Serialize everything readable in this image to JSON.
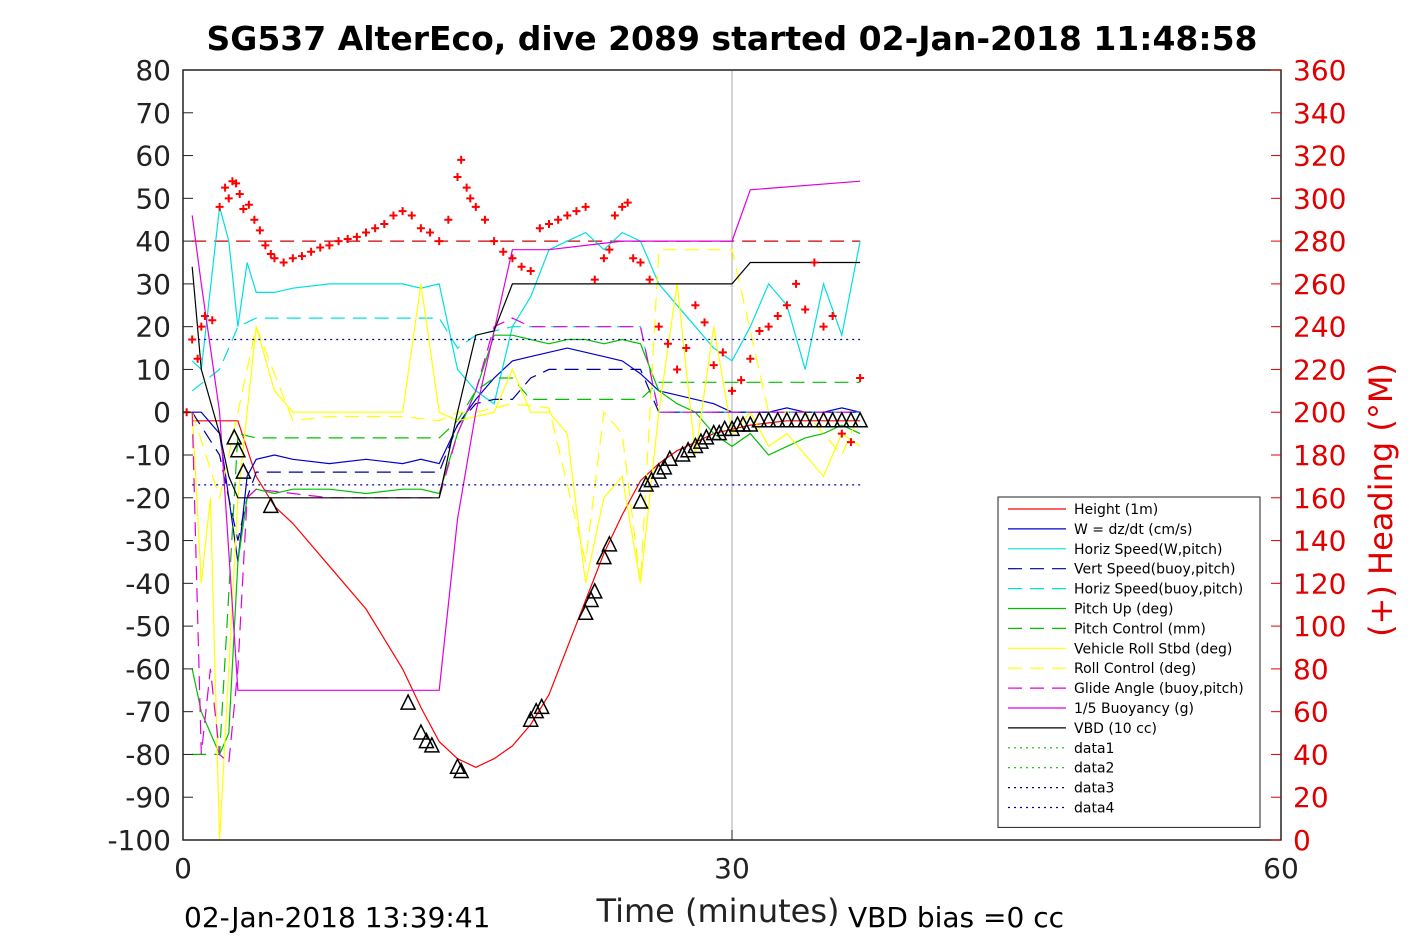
{
  "chart_data": {
    "type": "line",
    "title": "SG537 AlterEco, dive 2089 started 02-Jan-2018 11:48:58",
    "xlabel": "Time (minutes)",
    "ylabel": "",
    "ylabel_right": "(+) Heading (°M)",
    "xlim": [
      0,
      60
    ],
    "ylim": [
      -100,
      80
    ],
    "ylim_right": [
      0,
      360
    ],
    "x_ticks": [
      "0",
      "30",
      "60"
    ],
    "x_tick_values": [
      0,
      30,
      60
    ],
    "y_ticks": [
      "80",
      "70",
      "60",
      "50",
      "40",
      "30",
      "20",
      "10",
      "0",
      "-10",
      "-20",
      "-30",
      "-40",
      "-50",
      "-60",
      "-70",
      "-80",
      "-90",
      "-100"
    ],
    "y_tick_values": [
      80,
      70,
      60,
      50,
      40,
      30,
      20,
      10,
      0,
      -10,
      -20,
      -30,
      -40,
      -50,
      -60,
      -70,
      -80,
      -90,
      -100
    ],
    "y_right_ticks": [
      "360",
      "340",
      "320",
      "300",
      "280",
      "260",
      "240",
      "220",
      "200",
      "180",
      "160",
      "140",
      "120",
      "100",
      "80",
      "60",
      "40",
      "20",
      "0"
    ],
    "y_right_tick_values": [
      360,
      340,
      320,
      300,
      280,
      260,
      240,
      220,
      200,
      180,
      160,
      140,
      120,
      100,
      80,
      60,
      40,
      20,
      0
    ],
    "grid": false,
    "vertical_line_x": 30,
    "legend_position": "lower-right",
    "footer_left": "02-Jan-2018 13:39:41",
    "footer_right": "VBD bias =0 cc",
    "series": [
      {
        "name": "Height (1m)",
        "color": "#ff0000",
        "style": "solid",
        "x": [
          0.5,
          3,
          4,
          5,
          6,
          8,
          10,
          12,
          13,
          14,
          15,
          16,
          17,
          18,
          19,
          20,
          21,
          22,
          23,
          24,
          25,
          26,
          27,
          28,
          29,
          30,
          31,
          32,
          33,
          34,
          35,
          36,
          37
        ],
        "y": [
          -2,
          -2,
          -15,
          -22,
          -26,
          -36,
          -46,
          -60,
          -69,
          -77,
          -81,
          -83,
          -81,
          -78,
          -73,
          -66,
          -55,
          -44,
          -33,
          -24,
          -16,
          -12,
          -9,
          -7,
          -5,
          -4,
          -3,
          -2.5,
          -2,
          -2,
          -2,
          -2,
          -2
        ]
      },
      {
        "name": "W = dz/dt (cm/s)",
        "color": "#0000cc",
        "style": "solid",
        "x": [
          0.5,
          1,
          2,
          2.5,
          3,
          3.5,
          4,
          5,
          6,
          8,
          10,
          12,
          13,
          14,
          15,
          16,
          17,
          18,
          19,
          20,
          21,
          22,
          23,
          24,
          25,
          26,
          27,
          28,
          29,
          30,
          31,
          32,
          33,
          34,
          35,
          36,
          37
        ],
        "y": [
          0,
          0,
          -5,
          -20,
          -35,
          -15,
          -11,
          -10,
          -11,
          -12,
          -11,
          -12,
          -11,
          -12,
          -3,
          3,
          8,
          12,
          13,
          14,
          15,
          14,
          13,
          12,
          9,
          5,
          4,
          3,
          2,
          0,
          0,
          0,
          1,
          0,
          0,
          1,
          0
        ]
      },
      {
        "name": "Horiz Speed(W,pitch)",
        "color": "#00e0e0",
        "style": "solid",
        "x": [
          0.5,
          1,
          2,
          2.5,
          3,
          3.5,
          4,
          5,
          6,
          8,
          10,
          12,
          13,
          14,
          15,
          16,
          17,
          18,
          19,
          20,
          21,
          22,
          23,
          24,
          25,
          26,
          27,
          28,
          29,
          30,
          31,
          32,
          33,
          34,
          35,
          36,
          37
        ],
        "y": [
          12,
          10,
          48,
          40,
          20,
          35,
          28,
          28,
          29,
          30,
          30,
          30,
          29,
          30,
          10,
          5,
          2,
          20,
          27,
          38,
          40,
          42,
          38,
          42,
          40,
          30,
          25,
          20,
          15,
          12,
          20,
          30,
          25,
          10,
          30,
          18,
          40
        ]
      },
      {
        "name": "Vert Speed(buoy,pitch)",
        "color": "#000099",
        "style": "dashed",
        "x": [
          0.5,
          2,
          3,
          3.5,
          4,
          6,
          8,
          10,
          12,
          14,
          15,
          16,
          17,
          18,
          19,
          20,
          22,
          24,
          25,
          26,
          28,
          30,
          32,
          34,
          36,
          37
        ],
        "y": [
          0,
          -10,
          -30,
          -20,
          -14,
          -14,
          -14,
          -14,
          -14,
          -14,
          -3,
          2,
          3,
          3,
          8,
          10,
          10,
          10,
          10,
          0,
          0,
          0,
          0,
          0,
          0,
          0
        ]
      },
      {
        "name": "Horiz Speed(buoy,pitch)",
        "color": "#00e0e0",
        "style": "dashed",
        "x": [
          0.5,
          2,
          3,
          4,
          6,
          8,
          10,
          12,
          14,
          15,
          16,
          17,
          18,
          19,
          20,
          22,
          24,
          25,
          26,
          28,
          30,
          32,
          34,
          36,
          37
        ],
        "y": [
          5,
          10,
          20,
          22,
          22,
          22,
          22,
          22,
          22,
          15,
          18,
          19,
          20,
          20,
          20,
          20,
          20,
          20,
          0,
          0,
          0,
          0,
          0,
          0,
          0
        ]
      },
      {
        "name": "Pitch Up (deg)",
        "color": "#00c000",
        "style": "solid",
        "x": [
          0.5,
          1,
          2,
          2.5,
          3,
          3.5,
          4,
          5,
          6,
          8,
          10,
          12,
          13,
          14,
          15,
          16,
          17,
          18,
          19,
          20,
          21,
          22,
          23,
          24,
          25,
          26,
          27,
          28,
          29,
          30,
          31,
          32,
          33,
          34,
          35,
          36,
          37
        ],
        "y": [
          -60,
          -70,
          -80,
          -75,
          -35,
          -20,
          -18,
          -19,
          -18,
          -18,
          -19,
          -18,
          -18,
          -19,
          -5,
          5,
          18,
          18,
          17,
          16,
          17,
          17,
          16,
          17,
          16,
          5,
          2,
          0,
          -5,
          -8,
          -5,
          -10,
          -8,
          -6,
          -5,
          -3,
          -5
        ]
      },
      {
        "name": "Pitch Control (mm)",
        "color": "#00c000",
        "style": "dashed",
        "x": [
          0.5,
          2,
          3,
          4,
          6,
          8,
          10,
          12,
          14,
          15,
          16,
          17,
          18,
          19,
          20,
          22,
          24,
          25,
          26,
          28,
          30,
          32,
          34,
          36,
          37
        ],
        "y": [
          -80,
          -80,
          -5,
          -6,
          -6,
          -6,
          -6,
          -6,
          -6,
          -2,
          5,
          8,
          8,
          3,
          3,
          3,
          3,
          3,
          7,
          7,
          7,
          7,
          7,
          7,
          7
        ]
      },
      {
        "name": "Vehicle Roll Stbd (deg)",
        "color": "#ffff00",
        "style": "solid",
        "x": [
          0.5,
          1,
          1.5,
          2,
          2.5,
          3,
          3.5,
          4,
          5,
          6,
          8,
          10,
          12,
          13,
          14,
          15,
          16,
          17,
          18,
          19,
          20,
          21,
          22,
          23,
          24,
          25,
          26,
          27,
          28,
          29,
          30,
          31,
          32,
          33,
          34,
          35,
          36,
          37
        ],
        "y": [
          0,
          -40,
          -20,
          -100,
          -60,
          -20,
          0,
          20,
          5,
          0,
          0,
          0,
          0,
          30,
          0,
          -2,
          -1,
          0,
          10,
          0,
          0,
          -5,
          -40,
          -20,
          -15,
          -40,
          0,
          30,
          -10,
          20,
          -5,
          0,
          -8,
          -5,
          -10,
          -15,
          -5,
          -8
        ]
      },
      {
        "name": "Roll Control (deg)",
        "color": "#ffff00",
        "style": "dashed",
        "x": [
          0.5,
          2,
          3,
          4,
          6,
          8,
          10,
          12,
          14,
          15,
          16,
          18,
          20,
          22,
          23,
          24,
          25,
          26,
          28,
          30,
          32,
          34,
          36,
          37
        ],
        "y": [
          0,
          -20,
          0,
          20,
          -2,
          -1,
          -1,
          -1,
          -2,
          0,
          0,
          2,
          1,
          -35,
          0,
          -5,
          -40,
          38,
          38,
          38,
          0,
          0,
          -10,
          0
        ]
      },
      {
        "name": "Glide Angle (buoy,pitch)",
        "color": "#e000e0",
        "style": "dashed",
        "x": [
          0.5,
          1,
          1.5,
          2,
          2.5,
          3,
          3.5,
          4,
          6,
          8,
          10,
          12,
          14,
          15,
          16,
          17,
          18,
          19,
          20,
          22,
          24,
          25,
          26,
          28,
          30,
          32,
          34,
          36,
          37
        ],
        "y": [
          0,
          -80,
          -60,
          -80,
          -82,
          -60,
          -20,
          -18,
          -19,
          -20,
          -20,
          -20,
          -20,
          -5,
          5,
          20,
          22,
          20,
          20,
          20,
          20,
          20,
          0,
          0,
          0,
          0,
          0,
          0,
          0
        ]
      },
      {
        "name": "1/5 Buoyancy (g)",
        "color": "#e000e0",
        "style": "solid",
        "x": [
          0.5,
          1,
          2,
          3,
          3.5,
          14,
          15,
          16,
          18,
          20,
          22,
          24,
          25,
          30,
          31,
          37
        ],
        "y": [
          46,
          30,
          0,
          -65,
          -65,
          -65,
          -25,
          0,
          38,
          38,
          39,
          40,
          40,
          40,
          52,
          54
        ]
      },
      {
        "name": "VBD (10 cc)",
        "color": "#000000",
        "style": "solid",
        "x": [
          0.5,
          1,
          2,
          2.5,
          3,
          14,
          15,
          16,
          17,
          18,
          20,
          22,
          24,
          26,
          28,
          30,
          31,
          37
        ],
        "y": [
          34,
          10,
          -5,
          -15,
          -20,
          -20,
          0,
          18,
          19,
          30,
          30,
          30,
          30,
          30,
          30,
          30,
          35,
          35
        ]
      },
      {
        "name": "data1",
        "color": "#00c000",
        "style": "dotted",
        "x": [],
        "y": []
      },
      {
        "name": "data2",
        "color": "#00c000",
        "style": "dotted",
        "x": [],
        "y": []
      },
      {
        "name": "data3",
        "color": "#000099",
        "style": "dotted",
        "x": [
          0.5,
          37
        ],
        "y": [
          17,
          17
        ]
      },
      {
        "name": "data4",
        "color": "#000099",
        "style": "dotted",
        "x": [
          0.5,
          37
        ],
        "y": [
          -17,
          -17
        ]
      }
    ],
    "reference_lines": [
      {
        "name": "heading-reference",
        "color": "#cc0000",
        "style": "dashed",
        "y_right": 280,
        "x": [
          0.5,
          37
        ]
      }
    ],
    "heading_points": {
      "color": "#ff0000",
      "marker": "plus",
      "x": [
        0.2,
        0.5,
        0.8,
        1.0,
        1.2,
        1.6,
        2.0,
        2.3,
        2.5,
        2.7,
        2.9,
        3.1,
        3.3,
        3.6,
        3.9,
        4.2,
        4.5,
        4.8,
        5.0,
        5.5,
        6,
        6.5,
        7,
        7.5,
        8,
        8.5,
        9,
        9.5,
        10,
        10.5,
        11,
        11.5,
        12,
        12.5,
        13,
        13.5,
        14,
        14.5,
        15,
        15.2,
        15.5,
        15.7,
        16,
        16.5,
        17,
        17.5,
        18,
        18.5,
        19,
        19.5,
        20,
        20.5,
        21,
        21.5,
        22,
        22.5,
        23,
        23.3,
        23.6,
        24,
        24.3,
        24.6,
        25,
        25.5,
        26,
        26.5,
        27,
        27.5,
        28,
        28.5,
        29,
        29.5,
        30,
        30.5,
        31,
        31.5,
        32,
        32.5,
        33,
        33.5,
        34,
        34.5,
        35,
        35.5,
        36,
        36.5,
        37
      ],
      "y": [
        200,
        234,
        225,
        240,
        245,
        243,
        296,
        305,
        300,
        308,
        307,
        302,
        295,
        297,
        290,
        285,
        278,
        274,
        272,
        270,
        272,
        273,
        275,
        277,
        278,
        280,
        281,
        282,
        284,
        286,
        288,
        292,
        294,
        292,
        286,
        284,
        280,
        290,
        310,
        318,
        305,
        300,
        296,
        290,
        280,
        275,
        272,
        268,
        266,
        286,
        288,
        290,
        292,
        294,
        296,
        262,
        272,
        276,
        292,
        296,
        298,
        272,
        270,
        262,
        240,
        232,
        220,
        230,
        250,
        242,
        222,
        228,
        210,
        215,
        225,
        238,
        240,
        245,
        250,
        260,
        248,
        270,
        240,
        245,
        190,
        186,
        216
      ]
    },
    "markers": {
      "color": "#000000",
      "marker": "triangle",
      "x": [
        2.8,
        3.0,
        3.3,
        4.8,
        12.3,
        13.0,
        13.3,
        13.6,
        15.0,
        15.2,
        19.0,
        19.3,
        19.6,
        22.0,
        22.3,
        22.5,
        23.0,
        23.3,
        25.0,
        25.3,
        25.6,
        26.0,
        26.3,
        26.6,
        27.3,
        27.6,
        28.0,
        28.3,
        28.6,
        29.0,
        29.3,
        29.6,
        30.0,
        30.3,
        30.6,
        31.0,
        31.5,
        32,
        32.5,
        33,
        33.5,
        34,
        34.5,
        35,
        35.5,
        36,
        36.5,
        37
      ],
      "y": [
        -6,
        -9,
        -14,
        -22,
        -68,
        -75,
        -77,
        -78,
        -83,
        -84,
        -72,
        -70,
        -69,
        -47,
        -44,
        -42,
        -34,
        -31,
        -21,
        -17,
        -16,
        -14,
        -13,
        -11,
        -10,
        -9,
        -8,
        -7,
        -6,
        -5,
        -5,
        -4,
        -4,
        -3,
        -3,
        -3,
        -2,
        -2,
        -2,
        -2,
        -2,
        -2,
        -2,
        -2,
        -2,
        -2,
        -2,
        -2
      ]
    }
  }
}
